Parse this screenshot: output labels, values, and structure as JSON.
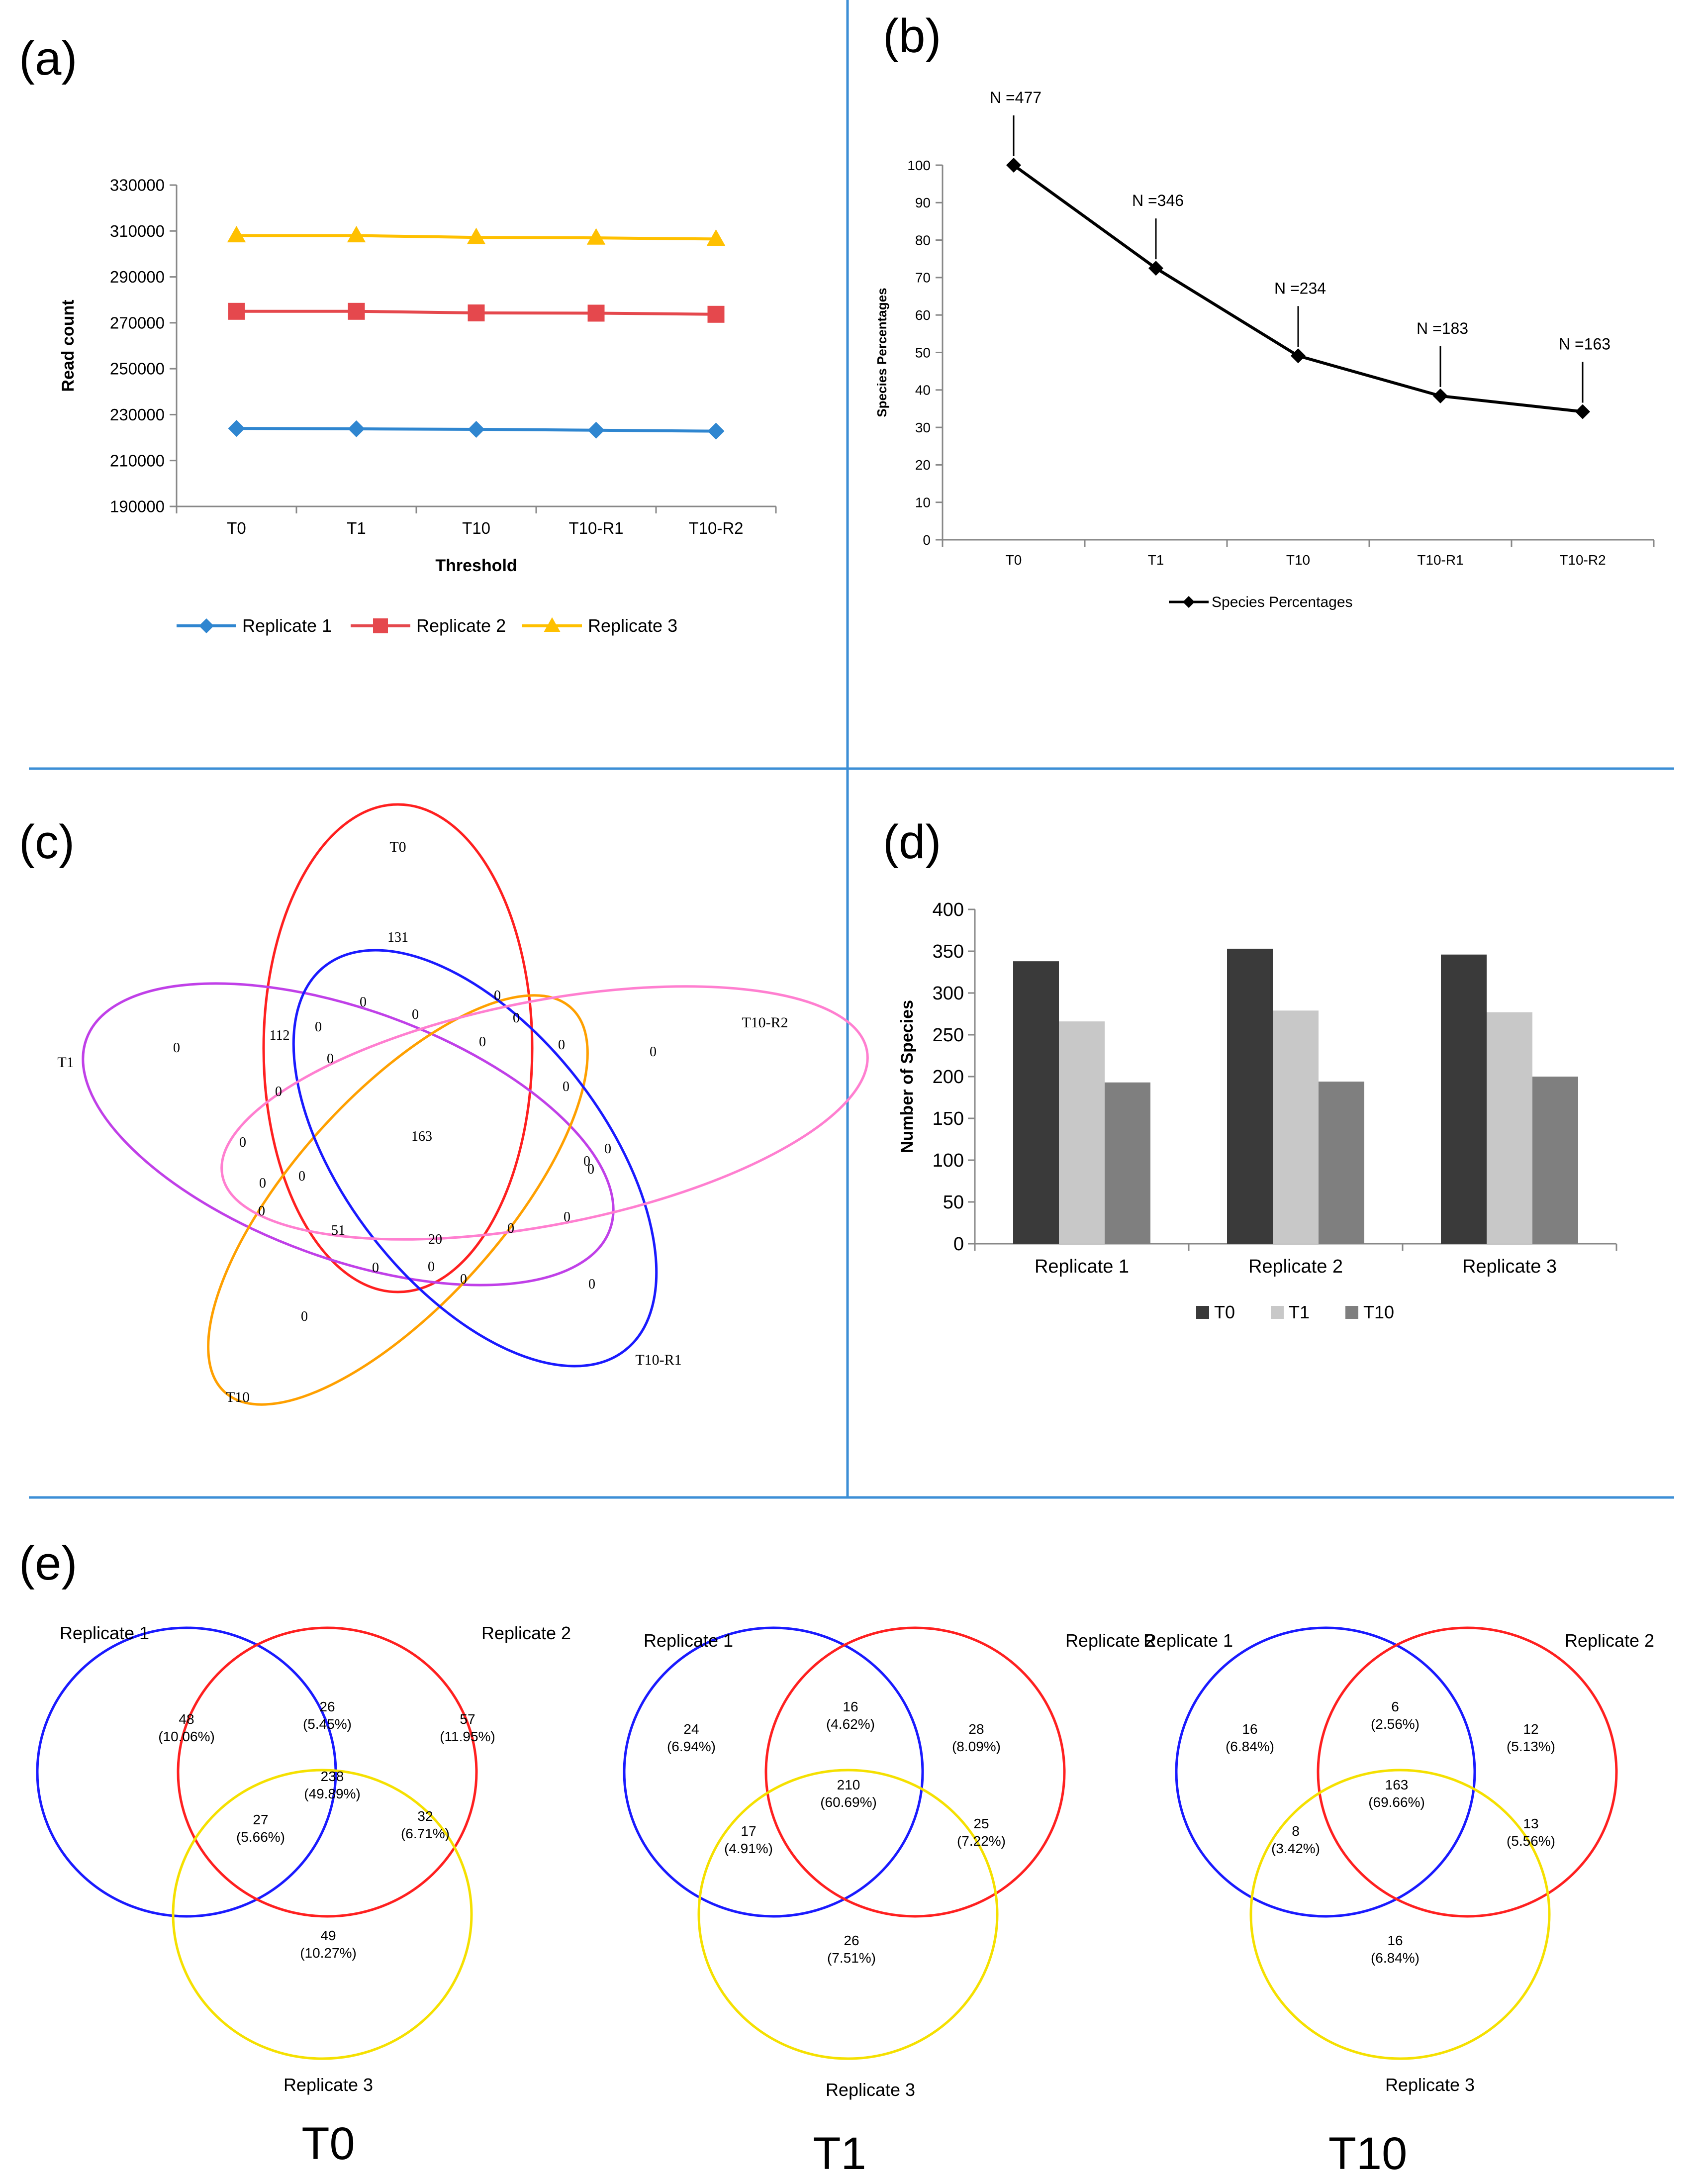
{
  "panel_labels": {
    "a": "(a)",
    "b": "(b)",
    "c": "(c)",
    "d": "(d)",
    "e": "(e)"
  },
  "colors": {
    "divider": "#3c8fd6",
    "rep1": "#2f86d0",
    "rep2": "#e5484d",
    "rep3": "#ffc000",
    "black": "#000000",
    "dark_bar": "#3a3a3a",
    "light_bar": "#c8c8c8",
    "mid_bar": "#7f7f7f",
    "venn_red": "#ff2020",
    "venn_blue": "#1a1aff",
    "venn_yellow": "#f5e000",
    "v5_t0": "#ff2020",
    "v5_t1": "#c040e8",
    "v5_t10": "#ffa000",
    "v5_r1": "#1a1aff",
    "v5_r2": "#ff7fd0"
  },
  "chart_data": [
    {
      "id": "a",
      "type": "line",
      "title": "",
      "xlabel": "Threshold",
      "ylabel": "Read count",
      "categories": [
        "T0",
        "T1",
        "T10",
        "T10-R1",
        "T10-R2"
      ],
      "ylim": [
        190000,
        330000
      ],
      "yticks": [
        "190000",
        "210000",
        "230000",
        "250000",
        "270000",
        "290000",
        "310000",
        "330000"
      ],
      "legend_position": "bottom",
      "series": [
        {
          "name": "Replicate 1",
          "color": "#2f86d0",
          "marker": "diamond",
          "values": [
            224000,
            223800,
            223600,
            223200,
            222800
          ]
        },
        {
          "name": "Replicate 2",
          "color": "#e5484d",
          "marker": "square",
          "values": [
            275000,
            275000,
            274300,
            274200,
            273700
          ]
        },
        {
          "name": "Replicate 3",
          "color": "#ffc000",
          "marker": "triangle",
          "values": [
            308000,
            308000,
            307200,
            307000,
            306500
          ]
        }
      ]
    },
    {
      "id": "b",
      "type": "line",
      "title": "",
      "xlabel": "",
      "ylabel": "Species Percentages",
      "categories": [
        "T0",
        "T1",
        "T10",
        "T10-R1",
        "T10-R2"
      ],
      "ylim": [
        0,
        100
      ],
      "yticks": [
        "0",
        "10",
        "20",
        "30",
        "40",
        "50",
        "60",
        "70",
        "80",
        "90",
        "100"
      ],
      "legend_position": "bottom",
      "series": [
        {
          "name": "Species Percentages",
          "color": "#000000",
          "marker": "diamond",
          "values": [
            100,
            72.5,
            49.1,
            38.4,
            34.2
          ]
        }
      ],
      "annotations": [
        "N =477",
        "N =346",
        "N =234",
        "N =183",
        "N =163"
      ]
    },
    {
      "id": "d",
      "type": "bar",
      "title": "",
      "xlabel": "",
      "ylabel": "Number of Species",
      "categories": [
        "Replicate 1",
        "Replicate 2",
        "Replicate 3"
      ],
      "ylim": [
        0,
        400
      ],
      "yticks": [
        "0",
        "50",
        "100",
        "150",
        "200",
        "250",
        "300",
        "350",
        "400"
      ],
      "legend_position": "bottom",
      "series": [
        {
          "name": "T0",
          "color": "#3a3a3a",
          "values": [
            338,
            353,
            346
          ]
        },
        {
          "name": "T1",
          "color": "#c8c8c8",
          "values": [
            266,
            279,
            277
          ]
        },
        {
          "name": "T10",
          "color": "#7f7f7f",
          "values": [
            193,
            194,
            200
          ]
        }
      ]
    }
  ],
  "venn5": {
    "set_labels": {
      "t0": "T0",
      "t1": "T1",
      "t10": "T10",
      "r1": "T10-R1",
      "r2": "T10-R2"
    },
    "regions": [
      "131",
      "0",
      "0",
      "0",
      "0",
      "112",
      "0",
      "0",
      "0",
      "0",
      "0",
      "0",
      "0",
      "0",
      "163",
      "0",
      "0",
      "0",
      "0",
      "0",
      "0",
      "0",
      "0",
      "0",
      "51",
      "20",
      "0",
      "0",
      "0",
      "0",
      "0"
    ]
  },
  "venn3": [
    {
      "title": "T0",
      "labels": [
        "Replicate 1",
        "Replicate 2",
        "Replicate 3"
      ],
      "regions": [
        {
          "n": "48",
          "p": "(10.06%)"
        },
        {
          "n": "26",
          "p": "(5.45%)"
        },
        {
          "n": "57",
          "p": "(11.95%)"
        },
        {
          "n": "238",
          "p": "(49.89%)"
        },
        {
          "n": "27",
          "p": "(5.66%)"
        },
        {
          "n": "32",
          "p": "(6.71%)"
        },
        {
          "n": "49",
          "p": "(10.27%)"
        }
      ]
    },
    {
      "title": "T1",
      "labels": [
        "Replicate 1",
        "Replicate 2",
        "Replicate 3"
      ],
      "regions": [
        {
          "n": "24",
          "p": "(6.94%)"
        },
        {
          "n": "16",
          "p": "(4.62%)"
        },
        {
          "n": "28",
          "p": "(8.09%)"
        },
        {
          "n": "210",
          "p": "(60.69%)"
        },
        {
          "n": "17",
          "p": "(4.91%)"
        },
        {
          "n": "25",
          "p": "(7.22%)"
        },
        {
          "n": "26",
          "p": "(7.51%)"
        }
      ]
    },
    {
      "title": "T10",
      "labels": [
        "Replicate 1",
        "Replicate 2",
        "Replicate 3"
      ],
      "regions": [
        {
          "n": "16",
          "p": "(6.84%)"
        },
        {
          "n": "6",
          "p": "(2.56%)"
        },
        {
          "n": "12",
          "p": "(5.13%)"
        },
        {
          "n": "163",
          "p": "(69.66%)"
        },
        {
          "n": "8",
          "p": "(3.42%)"
        },
        {
          "n": "13",
          "p": "(5.56%)"
        },
        {
          "n": "16",
          "p": "(6.84%)"
        }
      ]
    }
  ]
}
